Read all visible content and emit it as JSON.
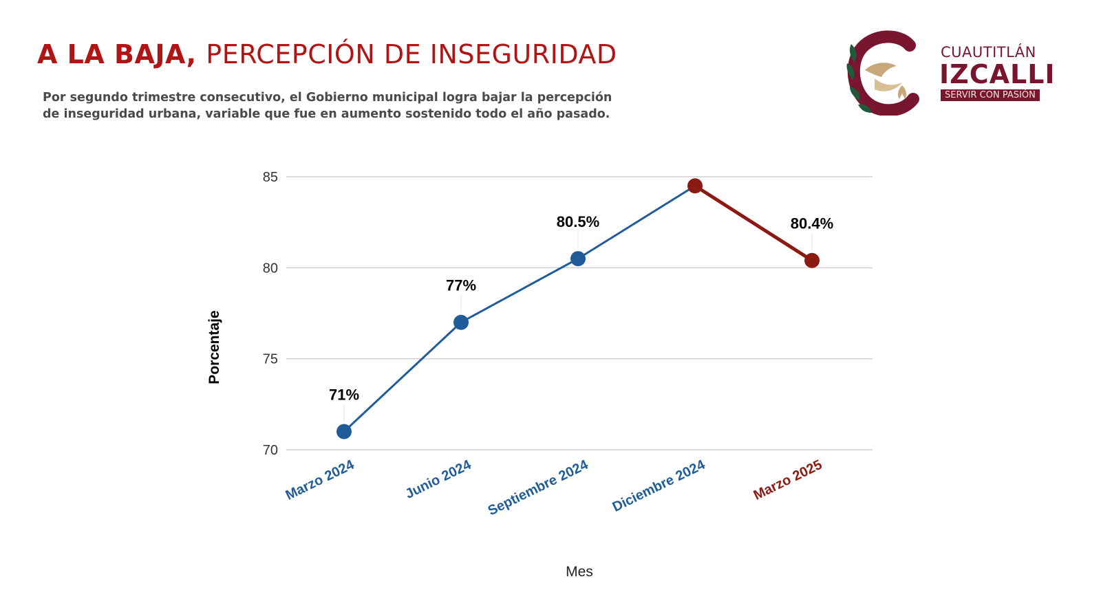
{
  "header": {
    "title_bold": "A LA BAJA,",
    "title_rest": "PERCEPCIÓN DE INSEGURIDAD",
    "subtitle_line1": "Por segundo trimestre consecutivo, el Gobierno municipal logra bajar la percepción",
    "subtitle_line2": "de inseguridad urbana, variable que fue en aumento sostenido todo el año pasado."
  },
  "logo": {
    "top_text": "CUAUTITLÁN",
    "main_text": "IZCALLI",
    "tagline": "SERVIR CON PASIÓN"
  },
  "colors": {
    "title_red": "#b01414",
    "blue": "#1f5c99",
    "dark_red": "#8b1a12",
    "brand_maroon": "#7a1530"
  },
  "chart_data": {
    "type": "line",
    "xlabel": "Mes",
    "ylabel": "Porcentaje",
    "ylim": [
      70,
      85
    ],
    "yticks": [
      70,
      75,
      80,
      85
    ],
    "grid": true,
    "categories": [
      "Marzo 2024",
      "Junio 2024",
      "Septiembre 2024",
      "Diciembre 2024",
      "Marzo 2025"
    ],
    "values": [
      71,
      77,
      80.5,
      84.5,
      80.4
    ],
    "data_labels": [
      "71%",
      "77%",
      "80.5%",
      "",
      "80.4%"
    ],
    "point_colors": [
      "#1f5c99",
      "#1f5c99",
      "#1f5c99",
      "#8b1a12",
      "#8b1a12"
    ],
    "category_colors": [
      "#1f5c99",
      "#1f5c99",
      "#1f5c99",
      "#1f5c99",
      "#8b1a12"
    ],
    "segment_colors": [
      "#1f5c99",
      "#1f5c99",
      "#1f5c99",
      "#8b1a12"
    ]
  }
}
